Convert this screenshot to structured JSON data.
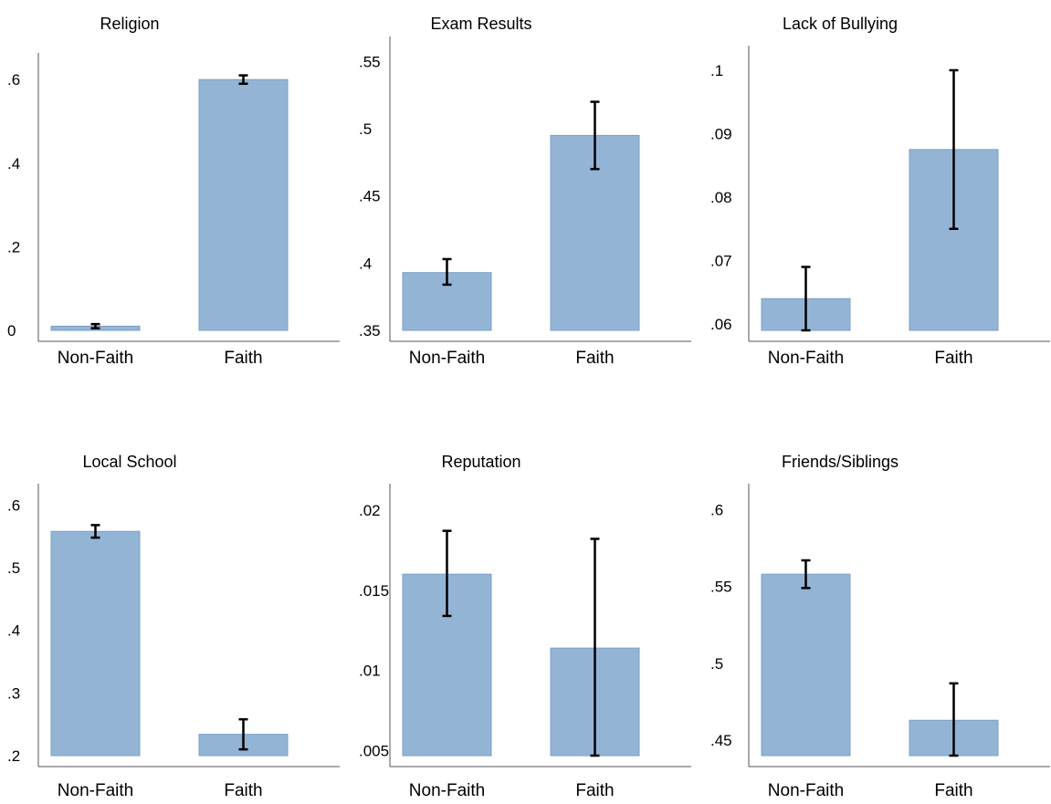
{
  "colors": {
    "bar_fill": "#94b4d6",
    "bar_stroke": "#7a9fc6",
    "axis": "#555555",
    "error_bar": "#000000"
  },
  "chart_data": [
    {
      "type": "bar",
      "title": "Religion",
      "categories": [
        "Non-Faith",
        "Faith"
      ],
      "values": [
        0.01,
        0.6
      ],
      "error_low": [
        0.005,
        0.59
      ],
      "error_high": [
        0.015,
        0.61
      ],
      "ylim": [
        0,
        0.62
      ],
      "yticks": [
        0,
        0.2,
        0.4,
        0.6
      ],
      "ytick_labels": [
        "0",
        ".2",
        ".4",
        ".6"
      ],
      "xlabel": "",
      "ylabel": ""
    },
    {
      "type": "bar",
      "title": "Exam Results",
      "categories": [
        "Non-Faith",
        "Faith"
      ],
      "values": [
        0.393,
        0.495
      ],
      "error_low": [
        0.384,
        0.47
      ],
      "error_high": [
        0.403,
        0.52
      ],
      "ylim": [
        0.35,
        0.555
      ],
      "yticks": [
        0.35,
        0.4,
        0.45,
        0.5,
        0.55
      ],
      "ytick_labels": [
        ".35",
        ".4",
        ".45",
        ".5",
        ".55"
      ],
      "xlabel": "",
      "ylabel": ""
    },
    {
      "type": "bar",
      "title": "Lack of Bullying",
      "categories": [
        "Non-Faith",
        "Faith"
      ],
      "values": [
        0.064,
        0.0875
      ],
      "error_low": [
        0.059,
        0.075
      ],
      "error_high": [
        0.069,
        0.1
      ],
      "ylim": [
        0.059,
        0.101
      ],
      "yticks": [
        0.06,
        0.07,
        0.08,
        0.09,
        0.1
      ],
      "ytick_labels": [
        ".06",
        ".07",
        ".08",
        ".09",
        ".1"
      ],
      "xlabel": "",
      "ylabel": ""
    },
    {
      "type": "bar",
      "title": "Local School",
      "categories": [
        "Non-Faith",
        "Faith"
      ],
      "values": [
        0.558,
        0.234
      ],
      "error_low": [
        0.548,
        0.21
      ],
      "error_high": [
        0.568,
        0.258
      ],
      "ylim": [
        0.2,
        0.605
      ],
      "yticks": [
        0.2,
        0.3,
        0.4,
        0.5,
        0.6
      ],
      "ytick_labels": [
        ".2",
        ".3",
        ".4",
        ".5",
        ".6"
      ],
      "xlabel": "",
      "ylabel": ""
    },
    {
      "type": "bar",
      "title": "Reputation",
      "categories": [
        "Non-Faith",
        "Faith"
      ],
      "values": [
        0.016,
        0.0114
      ],
      "error_low": [
        0.0134,
        0.0047
      ],
      "error_high": [
        0.0187,
        0.0182
      ],
      "ylim": [
        0.0047,
        0.0205
      ],
      "yticks": [
        0.005,
        0.01,
        0.015,
        0.02
      ],
      "ytick_labels": [
        ".005",
        ".01",
        ".015",
        ".02"
      ],
      "xlabel": "",
      "ylabel": ""
    },
    {
      "type": "bar",
      "title": "Friends/Siblings",
      "categories": [
        "Non-Faith",
        "Faith"
      ],
      "values": [
        0.558,
        0.463
      ],
      "error_low": [
        0.549,
        0.44
      ],
      "error_high": [
        0.567,
        0.487
      ],
      "ylim": [
        0.44,
        0.605
      ],
      "yticks": [
        0.45,
        0.5,
        0.55,
        0.6
      ],
      "ytick_labels": [
        ".45",
        ".5",
        ".55",
        ".6"
      ],
      "xlabel": "",
      "ylabel": ""
    }
  ]
}
